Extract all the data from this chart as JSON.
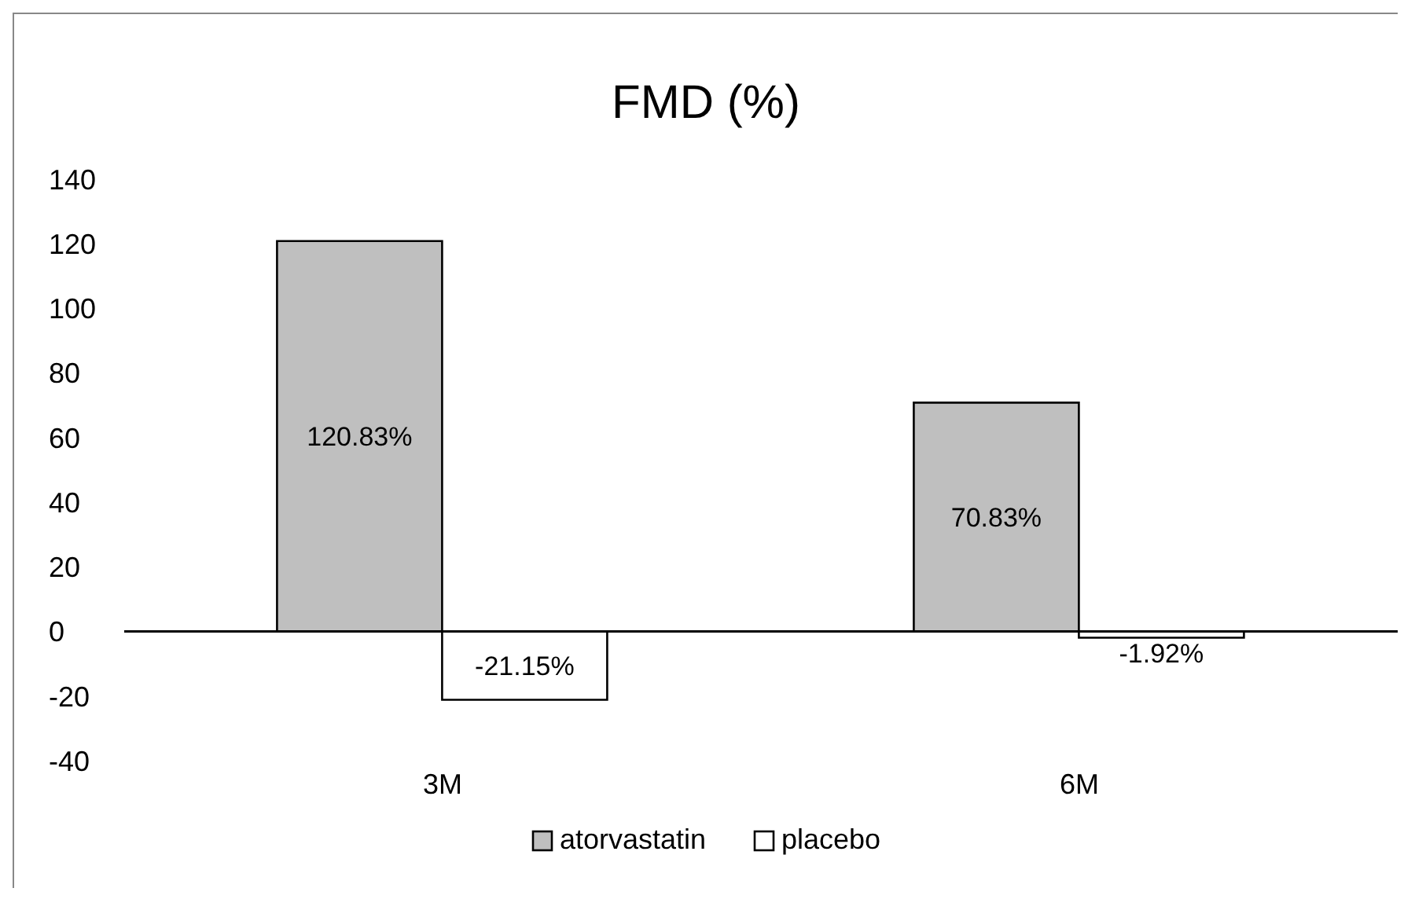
{
  "chart_data": {
    "type": "bar",
    "title": "FMD (%)",
    "categories": [
      "3M",
      "6M"
    ],
    "series": [
      {
        "name": "atorvastatin",
        "color": "#bfbfbf",
        "values": [
          120.83,
          70.83
        ],
        "value_labels": [
          "120.83%",
          "70.83%"
        ]
      },
      {
        "name": "placebo",
        "color": "#ffffff",
        "values": [
          -21.15,
          -1.92
        ],
        "value_labels": [
          "-21.15%",
          "-1.92%"
        ]
      }
    ],
    "ylim": [
      -40,
      140
    ],
    "yticks": [
      -40,
      -20,
      0,
      20,
      40,
      60,
      80,
      100,
      120,
      140
    ],
    "legend": "bottom"
  }
}
